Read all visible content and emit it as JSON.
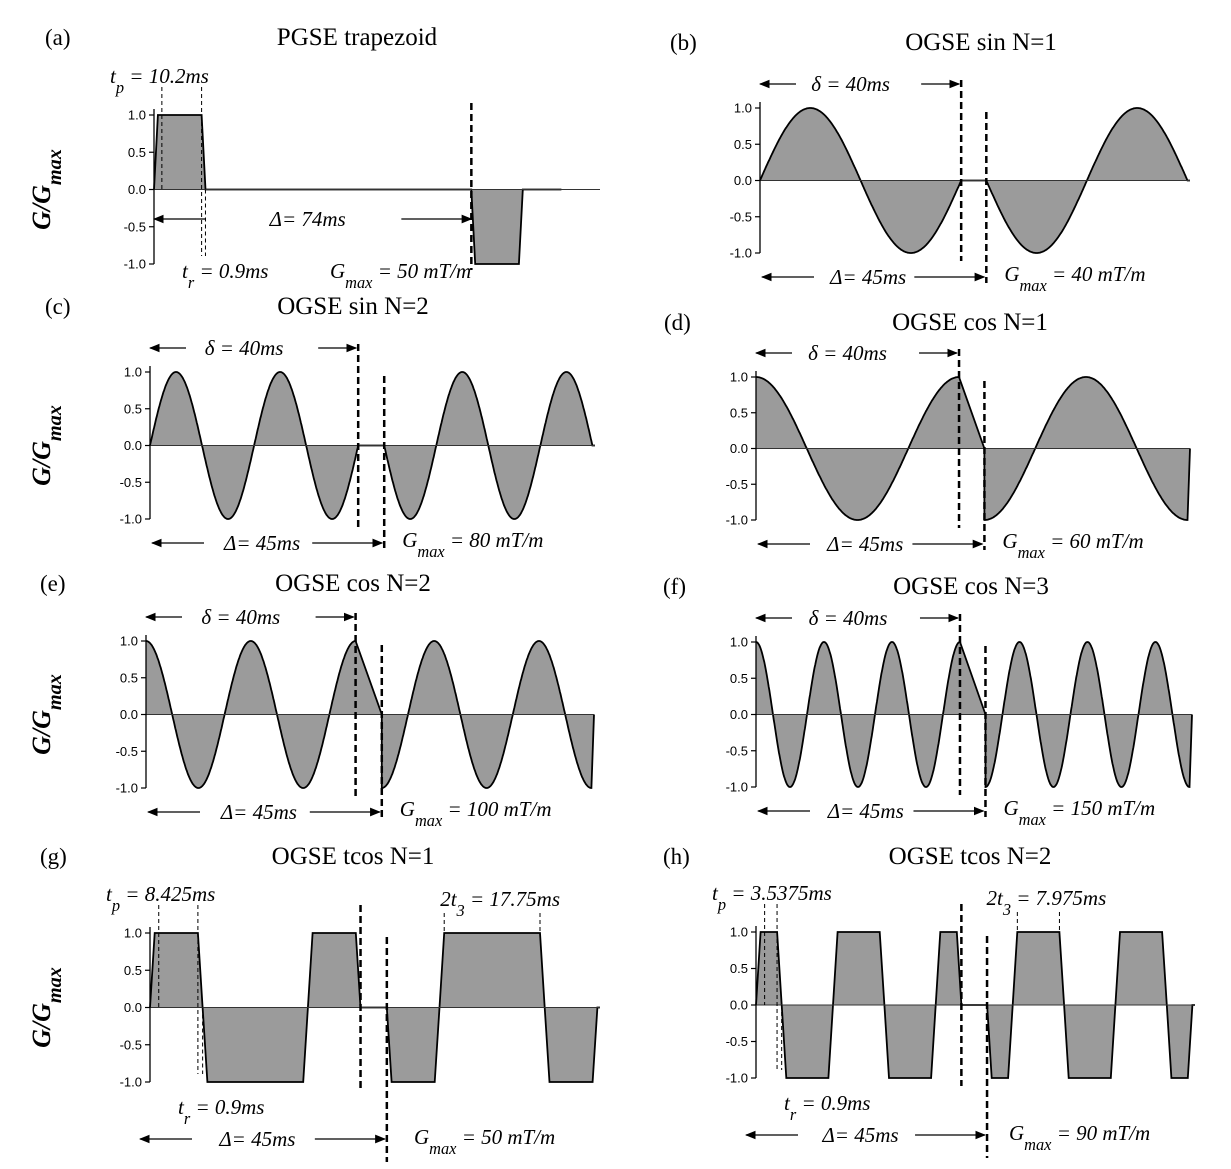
{
  "y_axis_label": "G/Gmax",
  "chart_data": [
    {
      "id": "a",
      "type": "area",
      "panel": "(a)",
      "title": "PGSE trapezoid",
      "waveform": "pgse",
      "t_p_ms": 10.2,
      "t_r_ms": 0.9,
      "Delta_ms": 74,
      "Gmax_mT_per_m": 50,
      "ylim": [
        -1,
        1
      ],
      "yticks": [
        "1.0",
        "0.5",
        "0.0",
        "-0.5",
        "-1.0"
      ],
      "annotations": {
        "tp": "t_p = 10.2ms",
        "tr": "t_r = 0.9ms",
        "Delta": "Δ= 74ms",
        "Gmax": "G_max = 50 mT/m"
      }
    },
    {
      "id": "b",
      "type": "area",
      "panel": "(b)",
      "title": "OGSE sin N=1",
      "waveform": "sin",
      "N": 1,
      "delta_ms": 40,
      "Delta_ms": 45,
      "Gmax_mT_per_m": 40,
      "ylim": [
        -1,
        1
      ],
      "yticks": [
        "1.0",
        "0.5",
        "0.0",
        "-0.5",
        "-1.0"
      ],
      "annotations": {
        "delta": "δ = 40ms",
        "Delta": "Δ= 45ms",
        "Gmax": "G_max = 40 mT/m"
      }
    },
    {
      "id": "c",
      "type": "area",
      "panel": "(c)",
      "title": "OGSE sin N=2",
      "waveform": "sin",
      "N": 2,
      "delta_ms": 40,
      "Delta_ms": 45,
      "Gmax_mT_per_m": 80,
      "ylim": [
        -1,
        1
      ],
      "yticks": [
        "1.0",
        "0.5",
        "0.0",
        "-0.5",
        "-1.0"
      ],
      "annotations": {
        "delta": "δ = 40ms",
        "Delta": "Δ= 45ms",
        "Gmax": "G_max = 80 mT/m"
      }
    },
    {
      "id": "d",
      "type": "area",
      "panel": "(d)",
      "title": "OGSE cos N=1",
      "waveform": "cos",
      "N": 1,
      "delta_ms": 40,
      "Delta_ms": 45,
      "Gmax_mT_per_m": 60,
      "ylim": [
        -1,
        1
      ],
      "yticks": [
        "1.0",
        "0.5",
        "0.0",
        "-0.5",
        "-1.0"
      ],
      "annotations": {
        "delta": "δ = 40ms",
        "Delta": "Δ= 45ms",
        "Gmax": "G_max = 60 mT/m"
      }
    },
    {
      "id": "e",
      "type": "area",
      "panel": "(e)",
      "title": "OGSE cos N=2",
      "waveform": "cos",
      "N": 2,
      "delta_ms": 40,
      "Delta_ms": 45,
      "Gmax_mT_per_m": 100,
      "ylim": [
        -1,
        1
      ],
      "yticks": [
        "1.0",
        "0.5",
        "0.0",
        "-0.5",
        "-1.0"
      ],
      "annotations": {
        "delta": "δ = 40ms",
        "Delta": "Δ= 45ms",
        "Gmax": "G_max = 100 mT/m"
      }
    },
    {
      "id": "f",
      "type": "area",
      "panel": "(f)",
      "title": "OGSE cos N=3",
      "waveform": "cos",
      "N": 3,
      "delta_ms": 40,
      "Delta_ms": 45,
      "Gmax_mT_per_m": 150,
      "ylim": [
        -1,
        1
      ],
      "yticks": [
        "1.0",
        "0.5",
        "0.0",
        "-0.5",
        "-1.0"
      ],
      "annotations": {
        "delta": "δ = 40ms",
        "Delta": "Δ= 45ms",
        "Gmax": "G_max = 150 mT/m"
      }
    },
    {
      "id": "g",
      "type": "area",
      "panel": "(g)",
      "title": "OGSE tcos N=1",
      "waveform": "tcos",
      "N": 1,
      "t_p_ms": 8.425,
      "t_r_ms": 0.9,
      "two_t3_ms": 17.75,
      "Delta_ms": 45,
      "Gmax_mT_per_m": 50,
      "ylim": [
        -1,
        1
      ],
      "yticks": [
        "1.0",
        "0.5",
        "0.0",
        "-0.5",
        "-1.0"
      ],
      "annotations": {
        "tp": "t_p = 8.425ms",
        "t3": "2t_3 = 17.75ms",
        "tr": "t_r = 0.9ms",
        "Delta": "Δ= 45ms",
        "Gmax": "G_max = 50 mT/m"
      }
    },
    {
      "id": "h",
      "type": "area",
      "panel": "(h)",
      "title": "OGSE tcos N=2",
      "waveform": "tcos",
      "N": 2,
      "t_p_ms": 3.5375,
      "t_r_ms": 0.9,
      "two_t3_ms": 7.975,
      "Delta_ms": 45,
      "Gmax_mT_per_m": 90,
      "ylim": [
        -1,
        1
      ],
      "yticks": [
        "1.0",
        "0.5",
        "0.0",
        "-0.5",
        "-1.0"
      ],
      "annotations": {
        "tp": "t_p = 3.5375ms",
        "t3": "2t_3 = 7.975ms",
        "tr": "t_r = 0.9ms",
        "Delta": "Δ= 45ms",
        "Gmax": "G_max = 90 mT/m"
      }
    }
  ]
}
